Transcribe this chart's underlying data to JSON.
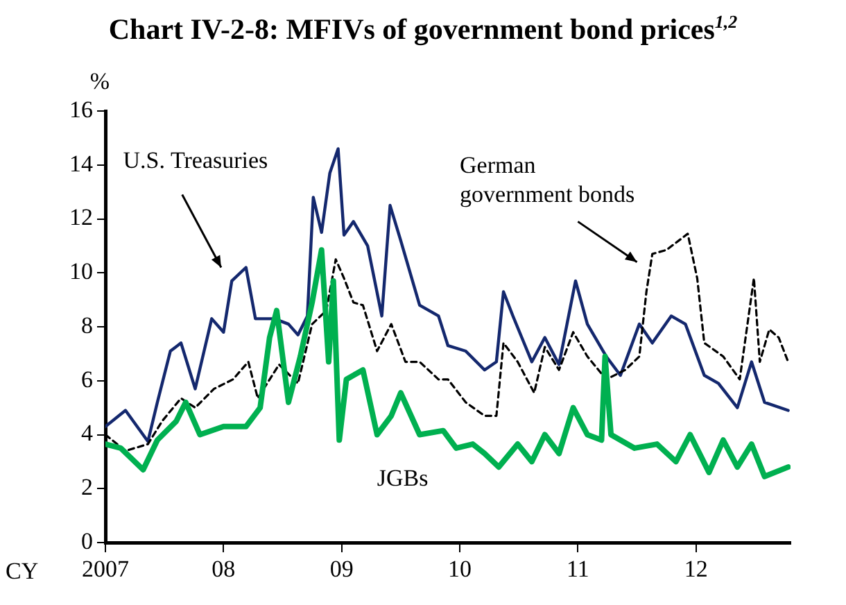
{
  "chart_data": {
    "type": "line",
    "title": "Chart IV-2-8: MFIVs of government bond prices$^{1,2}$",
    "ylabel": "%",
    "xlabel": "CY",
    "xlim": [
      2007,
      2012.8
    ],
    "xticks": [
      {
        "value": 2007,
        "label": "2007"
      },
      {
        "value": 2008,
        "label": "08"
      },
      {
        "value": 2009,
        "label": "09"
      },
      {
        "value": 2010,
        "label": "10"
      },
      {
        "value": 2011,
        "label": "11"
      },
      {
        "value": 2012,
        "label": "12"
      }
    ],
    "ylim": [
      0,
      16
    ],
    "yticks": [
      0,
      2,
      4,
      6,
      8,
      10,
      12,
      14,
      16
    ],
    "series": [
      {
        "name": "U.S. Treasuries",
        "color": "#14286e",
        "line_style": "solid",
        "x": [
          2007.0,
          2007.17,
          2007.36,
          2007.44,
          2007.55,
          2007.64,
          2007.76,
          2007.9,
          2008.0,
          2008.07,
          2008.19,
          2008.27,
          2008.43,
          2008.55,
          2008.63,
          2008.71,
          2008.76,
          2008.83,
          2008.9,
          2008.97,
          2009.02,
          2009.1,
          2009.22,
          2009.34,
          2009.41,
          2009.5,
          2009.66,
          2009.82,
          2009.9,
          2010.05,
          2010.21,
          2010.31,
          2010.37,
          2010.45,
          2010.61,
          2010.72,
          2010.84,
          2010.98,
          2011.08,
          2011.24,
          2011.36,
          2011.52,
          2011.63,
          2011.79,
          2011.91,
          2012.07,
          2012.19,
          2012.35,
          2012.47,
          2012.58,
          2012.78
        ],
        "values": [
          4.3,
          4.9,
          3.75,
          5.2,
          7.1,
          7.4,
          5.7,
          8.3,
          7.8,
          9.7,
          10.2,
          8.3,
          8.3,
          8.1,
          7.7,
          8.4,
          12.8,
          11.5,
          13.7,
          14.6,
          11.4,
          11.9,
          11.0,
          8.4,
          12.5,
          11.2,
          8.8,
          8.4,
          7.3,
          7.1,
          6.4,
          6.7,
          9.3,
          8.4,
          6.7,
          7.6,
          6.6,
          9.7,
          8.1,
          6.9,
          6.2,
          8.1,
          7.4,
          8.4,
          8.1,
          6.2,
          5.9,
          5.0,
          6.7,
          5.2,
          4.9
        ]
      },
      {
        "name": "German government bonds",
        "color": "#000000",
        "line_style": "dashed",
        "x": [
          2007.0,
          2007.17,
          2007.36,
          2007.48,
          2007.64,
          2007.76,
          2007.92,
          2008.08,
          2008.21,
          2008.29,
          2008.47,
          2008.63,
          2008.75,
          2008.87,
          2008.95,
          2009.02,
          2009.1,
          2009.18,
          2009.3,
          2009.42,
          2009.54,
          2009.66,
          2009.82,
          2009.9,
          2010.05,
          2010.21,
          2010.31,
          2010.37,
          2010.49,
          2010.63,
          2010.72,
          2010.84,
          2010.96,
          2011.08,
          2011.24,
          2011.4,
          2011.52,
          2011.58,
          2011.63,
          2011.75,
          2011.93,
          2012.01,
          2012.07,
          2012.23,
          2012.37,
          2012.49,
          2012.54,
          2012.62,
          2012.7,
          2012.78
        ],
        "values": [
          4.0,
          3.4,
          3.65,
          4.5,
          5.35,
          5.0,
          5.7,
          6.05,
          6.7,
          5.35,
          6.6,
          5.9,
          8.1,
          8.6,
          10.5,
          9.8,
          8.9,
          8.8,
          7.1,
          8.1,
          6.7,
          6.7,
          6.05,
          6.05,
          5.2,
          4.7,
          4.7,
          7.4,
          6.7,
          5.55,
          7.25,
          6.4,
          7.8,
          6.9,
          6.05,
          6.4,
          6.9,
          9.3,
          10.7,
          10.85,
          11.45,
          9.8,
          7.4,
          6.9,
          6.05,
          9.8,
          6.7,
          7.9,
          7.6,
          6.7
        ]
      },
      {
        "name": "JGBs",
        "color": "#00b050",
        "line_style": "solid",
        "x": [
          2007.0,
          2007.13,
          2007.32,
          2007.44,
          2007.6,
          2007.68,
          2007.8,
          2008.0,
          2008.19,
          2008.31,
          2008.39,
          2008.45,
          2008.55,
          2008.65,
          2008.75,
          2008.83,
          2008.89,
          2008.93,
          2008.98,
          2009.04,
          2009.18,
          2009.3,
          2009.42,
          2009.5,
          2009.66,
          2009.86,
          2009.97,
          2010.11,
          2010.21,
          2010.33,
          2010.49,
          2010.61,
          2010.72,
          2010.84,
          2010.96,
          2011.08,
          2011.2,
          2011.23,
          2011.28,
          2011.48,
          2011.67,
          2011.83,
          2011.95,
          2012.11,
          2012.23,
          2012.35,
          2012.47,
          2012.58,
          2012.78
        ],
        "values": [
          3.65,
          3.5,
          2.7,
          3.8,
          4.5,
          5.2,
          4.0,
          4.3,
          4.3,
          5.0,
          7.6,
          8.6,
          5.2,
          6.9,
          8.9,
          10.85,
          6.7,
          9.7,
          3.8,
          6.05,
          6.4,
          4.0,
          4.7,
          5.55,
          4.0,
          4.15,
          3.5,
          3.65,
          3.3,
          2.8,
          3.65,
          3.0,
          4.0,
          3.3,
          5.0,
          4.0,
          3.8,
          6.9,
          4.0,
          3.5,
          3.65,
          3.0,
          4.0,
          2.6,
          3.8,
          2.8,
          3.65,
          2.45,
          2.8
        ]
      }
    ]
  }
}
